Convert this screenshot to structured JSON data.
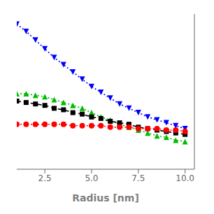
{
  "chart_data": {
    "type": "line",
    "xlabel": "Radius [nm]",
    "x": [
      1.0,
      1.5,
      2.0,
      2.5,
      3.0,
      3.5,
      4.0,
      4.5,
      5.0,
      5.5,
      6.0,
      6.5,
      7.0,
      7.5,
      8.0,
      8.5,
      9.0,
      9.5,
      10.0
    ],
    "series": [
      {
        "color": "#0000ff",
        "marker": "triangle_down",
        "line_style": "dotted",
        "values": [
          0.95,
          0.9,
          0.84,
          0.78,
          0.72,
          0.67,
          0.62,
          0.57,
          0.52,
          0.48,
          0.44,
          0.4,
          0.37,
          0.34,
          0.31,
          0.29,
          0.27,
          0.25,
          0.23
        ]
      },
      {
        "color": "#00bb00",
        "marker": "triangle_up",
        "line_style": "dotted",
        "values": [
          0.47,
          0.47,
          0.46,
          0.45,
          0.43,
          0.41,
          0.39,
          0.37,
          0.34,
          0.31,
          0.29,
          0.26,
          0.24,
          0.22,
          0.2,
          0.18,
          0.17,
          0.15,
          0.14
        ]
      },
      {
        "color": "#000000",
        "marker": "square",
        "line_style": "dashed",
        "values": [
          0.42,
          0.41,
          0.4,
          0.39,
          0.37,
          0.36,
          0.34,
          0.33,
          0.31,
          0.3,
          0.28,
          0.27,
          0.26,
          0.24,
          0.23,
          0.22,
          0.21,
          0.2,
          0.19
        ]
      },
      {
        "color": "#ff0000",
        "marker": "circle",
        "line_style": "dotted",
        "values": [
          0.26,
          0.26,
          0.26,
          0.26,
          0.26,
          0.26,
          0.25,
          0.25,
          0.25,
          0.25,
          0.24,
          0.24,
          0.24,
          0.23,
          0.23,
          0.23,
          0.22,
          0.22,
          0.21
        ]
      }
    ],
    "xlim": [
      1.0,
      10.5
    ],
    "xticks": [
      2.5,
      {
        "value": 5.0,
        "label": "5.0"
      },
      7.5,
      {
        "value": 10.0,
        "label": "10.0"
      }
    ],
    "ylim": [
      -0.05,
      1.02
    ],
    "yticks": [
      0.0,
      0.2,
      0.4,
      0.6,
      0.8,
      1.0
    ],
    "tick_labels": "x"
  }
}
